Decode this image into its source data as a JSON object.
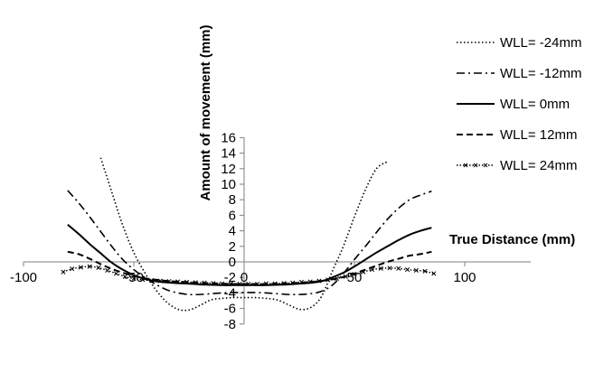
{
  "chart_data": {
    "type": "line",
    "xlabel": "True Distance (mm)",
    "ylabel": "Amount of movement (mm)",
    "xlim": [
      -100,
      130
    ],
    "ylim": [
      -8,
      16
    ],
    "x_ticks": [
      -100,
      -50,
      0,
      50,
      100
    ],
    "y_ticks": [
      -8,
      -6,
      -4,
      -2,
      0,
      2,
      4,
      6,
      8,
      10,
      12,
      14,
      16
    ],
    "grid": false,
    "legend_position": "right",
    "series": [
      {
        "name": "WLL= -24mm",
        "style": "dotted",
        "color": "#000000",
        "x": [
          -65,
          -60,
          -55,
          -50,
          -45,
          -40,
          -35,
          -30,
          -25,
          -20,
          -15,
          -10,
          -5,
          0,
          5,
          10,
          15,
          20,
          25,
          30,
          35,
          40,
          45,
          50,
          55,
          60,
          65
        ],
        "y": [
          13.4,
          9.0,
          4.7,
          1.2,
          -1.4,
          -3.6,
          -5.2,
          -6.1,
          -6.2,
          -5.6,
          -4.9,
          -4.7,
          -4.6,
          -4.6,
          -4.6,
          -4.7,
          -4.9,
          -5.5,
          -6.1,
          -5.9,
          -4.5,
          -1.2,
          2.0,
          5.8,
          9.3,
          12.0,
          12.9
        ]
      },
      {
        "name": "WLL= -12mm",
        "style": "dash-dot",
        "color": "#000000",
        "x": [
          -80,
          -75,
          -70,
          -65,
          -60,
          -55,
          -50,
          -45,
          -40,
          -35,
          -30,
          -25,
          -20,
          -15,
          -10,
          -5,
          0,
          5,
          10,
          15,
          20,
          25,
          30,
          35,
          40,
          45,
          50,
          55,
          60,
          65,
          70,
          75,
          80,
          85
        ],
        "y": [
          9.2,
          7.6,
          5.8,
          3.9,
          2.0,
          0.3,
          -1.0,
          -2.0,
          -2.9,
          -3.6,
          -4.0,
          -4.2,
          -4.2,
          -4.1,
          -4.0,
          -3.95,
          -3.95,
          -3.95,
          -4.0,
          -4.1,
          -4.2,
          -4.2,
          -4.1,
          -3.8,
          -3.0,
          -1.5,
          0.3,
          2.0,
          3.8,
          5.5,
          6.9,
          8.0,
          8.6,
          9.1
        ]
      },
      {
        "name": "WLL= 0mm",
        "style": "solid",
        "color": "#000000",
        "x": [
          -80,
          -75,
          -70,
          -65,
          -60,
          -55,
          -50,
          -45,
          -40,
          -35,
          -30,
          -25,
          -20,
          -15,
          -10,
          -5,
          0,
          5,
          10,
          15,
          20,
          25,
          30,
          35,
          40,
          45,
          50,
          55,
          60,
          65,
          70,
          75,
          80,
          85
        ],
        "y": [
          4.8,
          3.6,
          2.3,
          1.1,
          -0.1,
          -1.0,
          -1.7,
          -2.2,
          -2.5,
          -2.65,
          -2.75,
          -2.8,
          -2.9,
          -2.95,
          -3.0,
          -3.0,
          -3.0,
          -3.0,
          -3.0,
          -2.95,
          -2.9,
          -2.8,
          -2.7,
          -2.5,
          -2.0,
          -1.4,
          -0.6,
          0.3,
          1.2,
          2.0,
          2.8,
          3.5,
          4.0,
          4.4
        ]
      },
      {
        "name": "WLL= 12mm",
        "style": "dashed",
        "color": "#000000",
        "x": [
          -80,
          -75,
          -70,
          -65,
          -60,
          -55,
          -50,
          -45,
          -40,
          -35,
          -30,
          -25,
          -20,
          -15,
          -10,
          -5,
          0,
          5,
          10,
          15,
          20,
          25,
          30,
          35,
          40,
          45,
          50,
          55,
          60,
          65,
          70,
          75,
          80,
          85
        ],
        "y": [
          1.3,
          1.0,
          0.4,
          -0.3,
          -0.9,
          -1.4,
          -1.8,
          -2.1,
          -2.3,
          -2.45,
          -2.55,
          -2.6,
          -2.7,
          -2.75,
          -2.8,
          -2.85,
          -2.85,
          -2.85,
          -2.85,
          -2.8,
          -2.75,
          -2.7,
          -2.6,
          -2.45,
          -2.25,
          -1.95,
          -1.5,
          -1.0,
          -0.5,
          0.0,
          0.4,
          0.8,
          1.0,
          1.3
        ]
      },
      {
        "name": "WLL= 24mm",
        "style": "dotted-cross",
        "color": "#000000",
        "x": [
          -82,
          -78,
          -74,
          -70,
          -66,
          -62,
          -58,
          -54,
          -50,
          -46,
          -42,
          -38,
          -34,
          -30,
          -26,
          -22,
          -18,
          -14,
          -10,
          -6,
          -2,
          2,
          6,
          10,
          14,
          18,
          22,
          26,
          30,
          34,
          38,
          42,
          46,
          50,
          54,
          58,
          62,
          66,
          70,
          74,
          78,
          82,
          86
        ],
        "y": [
          -1.3,
          -0.9,
          -0.7,
          -0.6,
          -0.75,
          -1.1,
          -1.5,
          -1.9,
          -2.15,
          -2.3,
          -2.4,
          -2.45,
          -2.5,
          -2.55,
          -2.6,
          -2.65,
          -2.7,
          -2.75,
          -2.8,
          -2.8,
          -2.85,
          -2.85,
          -2.85,
          -2.8,
          -2.8,
          -2.75,
          -2.7,
          -2.6,
          -2.55,
          -2.45,
          -2.3,
          -2.15,
          -1.9,
          -1.6,
          -1.3,
          -1.0,
          -0.85,
          -0.8,
          -0.85,
          -1.0,
          -1.1,
          -1.2,
          -1.5
        ]
      }
    ]
  }
}
